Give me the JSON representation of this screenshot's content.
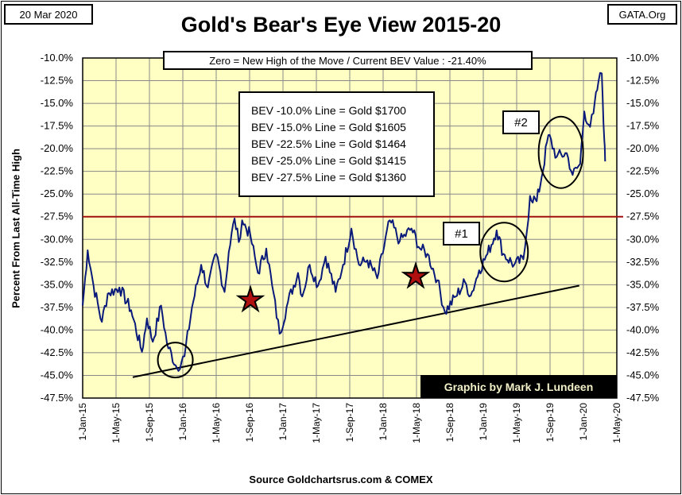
{
  "header": {
    "date": "20 Mar 2020",
    "site": "GATA.Org",
    "source": "Source Goldchartsrus.com & COMEX"
  },
  "chart_data": {
    "type": "line",
    "title": "Gold's Bear's Eye View 2015-20",
    "ylabel": "Percent  From Last  All-Time High",
    "xlabel": "",
    "x_unit": "months since 1-Jan-15",
    "ylim": [
      -47.5,
      -10
    ],
    "yticks": [
      "-10.0%",
      "-12.5%",
      "-15.0%",
      "-17.5%",
      "-20.0%",
      "-22.5%",
      "-25.0%",
      "-27.5%",
      "-30.0%",
      "-32.5%",
      "-35.0%",
      "-37.5%",
      "-40.0%",
      "-42.5%",
      "-45.0%",
      "-47.5%"
    ],
    "xticks": [
      "1-Jan-15",
      "1-May-15",
      "1-Sep-15",
      "1-Jan-16",
      "1-May-16",
      "1-Sep-16",
      "1-Jan-17",
      "1-May-17",
      "1-Sep-17",
      "1-Jan-18",
      "1-May-18",
      "1-Sep-18",
      "1-Jan-19",
      "1-May-19",
      "1-Sep-19",
      "1-Jan-20",
      "1-May-20"
    ],
    "grid": true,
    "series": [
      {
        "name": "BEV",
        "color": "#0a1a7a",
        "x": [
          0,
          0.6,
          1.3,
          2.3,
          3,
          4.4,
          5.8,
          7.1,
          7.7,
          8.4,
          9.4,
          10.1,
          11.3,
          12.2,
          13.1,
          14.2,
          15,
          16,
          17,
          17.5,
          18.2,
          18.7,
          19.1,
          20.1,
          21,
          22,
          22.7,
          23.6,
          24.6,
          25.8,
          26.3,
          27.2,
          28.2,
          29.1,
          30.3,
          31.2,
          32.2,
          33.1,
          34.1,
          35.3,
          36.8,
          38,
          39.4,
          40.4,
          41.3,
          42.5,
          43.4,
          44.7,
          45.8,
          46.5,
          47.5,
          48.5,
          49.6,
          50.4,
          51.7,
          52.8,
          53.2,
          53.6,
          54.4,
          55,
          55.8,
          56.8,
          58,
          58.7,
          59.6,
          60.1,
          60.8,
          61.2,
          61.8,
          62.2,
          62.3,
          62.5,
          62.6
        ],
        "y": [
          -37.3,
          -31.2,
          -35.1,
          -39.1,
          -36.0,
          -35.3,
          -37.8,
          -42.4,
          -38.7,
          -41.3,
          -37.3,
          -41.5,
          -44.2,
          -42.9,
          -37.5,
          -32.8,
          -35.3,
          -31.6,
          -35.8,
          -31.4,
          -27.7,
          -30.3,
          -27.9,
          -29.6,
          -33.7,
          -31.0,
          -35.1,
          -40.4,
          -36.9,
          -33.7,
          -36.3,
          -32.8,
          -35.1,
          -31.9,
          -35.8,
          -32.8,
          -28.8,
          -32.8,
          -32.3,
          -34.3,
          -27.9,
          -30.2,
          -28.8,
          -31.0,
          -31.6,
          -34.5,
          -38.0,
          -36.3,
          -34.7,
          -36.2,
          -33.4,
          -31.6,
          -29.0,
          -31.6,
          -32.8,
          -32.2,
          -29.3,
          -25.2,
          -25.8,
          -23.1,
          -18.5,
          -20.9,
          -20.5,
          -22.9,
          -21.7,
          -15.9,
          -17.6,
          -16.1,
          -12.6,
          -11.7,
          -14.1,
          -19.1,
          -21.4
        ]
      }
    ],
    "reference_line": {
      "value": -27.5,
      "color": "#a01010"
    },
    "trendline": {
      "from": [
        6,
        -45.2
      ],
      "to": [
        59.5,
        -35.1
      ]
    },
    "circles": [
      {
        "x": 11.1,
        "y": -43.3
      },
      {
        "x": 50.5,
        "y": -31.4
      },
      {
        "x": 57.3,
        "y": -20.4
      }
    ],
    "stars": [
      {
        "x": 20.1,
        "y": -36.7
      },
      {
        "x": 39.9,
        "y": -34.1
      }
    ],
    "annotations": {
      "top": "Zero = New High of the Move / Current  BEV Value : -21.40%",
      "label1": "#1",
      "label2": "#2",
      "credit": "Graphic by Mark J. Lundeen",
      "legend": [
        "BEV -10.0% Line = Gold $1700",
        "BEV -15.0% Line = Gold $1605",
        "BEV -22.5% Line = Gold $1464",
        "BEV -25.0% Line = Gold $1415",
        "BEV -27.5% Line = Gold $1360"
      ]
    }
  }
}
